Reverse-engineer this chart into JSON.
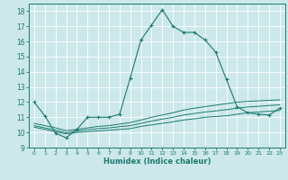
{
  "xlabel": "Humidex (Indice chaleur)",
  "bg_color": "#cce8ea",
  "grid_color": "#ffffff",
  "line_color": "#1a7a6e",
  "xlim": [
    -0.5,
    23.5
  ],
  "ylim": [
    9,
    18.5
  ],
  "yticks": [
    9,
    10,
    11,
    12,
    13,
    14,
    15,
    16,
    17,
    18
  ],
  "xticks": [
    0,
    1,
    2,
    3,
    4,
    5,
    6,
    7,
    8,
    9,
    10,
    11,
    12,
    13,
    14,
    15,
    16,
    17,
    18,
    19,
    20,
    21,
    22,
    23
  ],
  "main_line_x": [
    0,
    1,
    2,
    3,
    4,
    5,
    6,
    7,
    8,
    9,
    10,
    11,
    12,
    13,
    14,
    15,
    16,
    17,
    18,
    19,
    20,
    21,
    22,
    23
  ],
  "main_line_y": [
    12.0,
    11.1,
    9.95,
    9.65,
    10.2,
    11.0,
    11.0,
    11.0,
    11.2,
    13.6,
    16.1,
    17.1,
    18.1,
    17.0,
    16.6,
    16.6,
    16.1,
    15.3,
    13.5,
    11.7,
    11.3,
    11.2,
    11.15,
    11.6
  ],
  "flat_lines": [
    [
      10.35,
      10.2,
      10.05,
      9.9,
      10.0,
      10.05,
      10.1,
      10.15,
      10.2,
      10.25,
      10.4,
      10.5,
      10.6,
      10.7,
      10.82,
      10.9,
      11.0,
      11.05,
      11.1,
      11.2,
      11.3,
      11.35,
      11.4,
      11.45
    ],
    [
      10.45,
      10.3,
      10.15,
      9.98,
      10.1,
      10.18,
      10.25,
      10.3,
      10.38,
      10.45,
      10.6,
      10.75,
      10.88,
      11.0,
      11.15,
      11.25,
      11.35,
      11.42,
      11.5,
      11.6,
      11.68,
      11.72,
      11.78,
      11.82
    ],
    [
      10.6,
      10.45,
      10.3,
      10.12,
      10.2,
      10.3,
      10.4,
      10.45,
      10.55,
      10.65,
      10.82,
      11.0,
      11.15,
      11.3,
      11.48,
      11.6,
      11.7,
      11.8,
      11.9,
      12.0,
      12.05,
      12.08,
      12.12,
      12.15
    ]
  ]
}
